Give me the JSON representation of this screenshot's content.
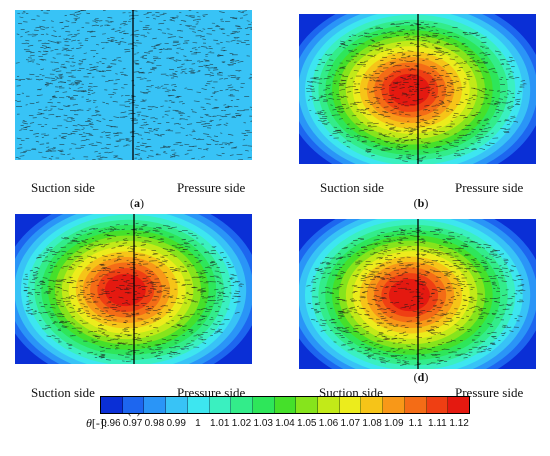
{
  "panels": [
    {
      "id": "a",
      "letter": "a",
      "max_value": 0.99,
      "hot_center": false
    },
    {
      "id": "b",
      "letter": "b",
      "max_value": 1.12,
      "hot_center": true
    },
    {
      "id": "c",
      "letter": "c",
      "max_value": 1.12,
      "hot_center": true
    },
    {
      "id": "d",
      "letter": "d",
      "max_value": 1.12,
      "hot_center": true
    }
  ],
  "labels": {
    "suction": "Suction side",
    "pressure": "Pressure side"
  },
  "colorbar": {
    "symbol": "θ",
    "unit": "[-]:",
    "ticks": [
      "0.96",
      "0.97",
      "0.98",
      "0.99",
      "1",
      "1.01",
      "1.02",
      "1.03",
      "1.04",
      "1.05",
      "1.06",
      "1.07",
      "1.08",
      "1.09",
      "1.1",
      "1.11",
      "1.12"
    ],
    "colors": [
      "#0a2fd6",
      "#1d66ef",
      "#2a95f7",
      "#38c3f6",
      "#3de6f0",
      "#3af0c0",
      "#33ec8a",
      "#2ee65a",
      "#45e02a",
      "#86e41c",
      "#c2ea18",
      "#ecec1c",
      "#f6c418",
      "#f89818",
      "#f46c16",
      "#ef3f13",
      "#e41910"
    ]
  }
}
